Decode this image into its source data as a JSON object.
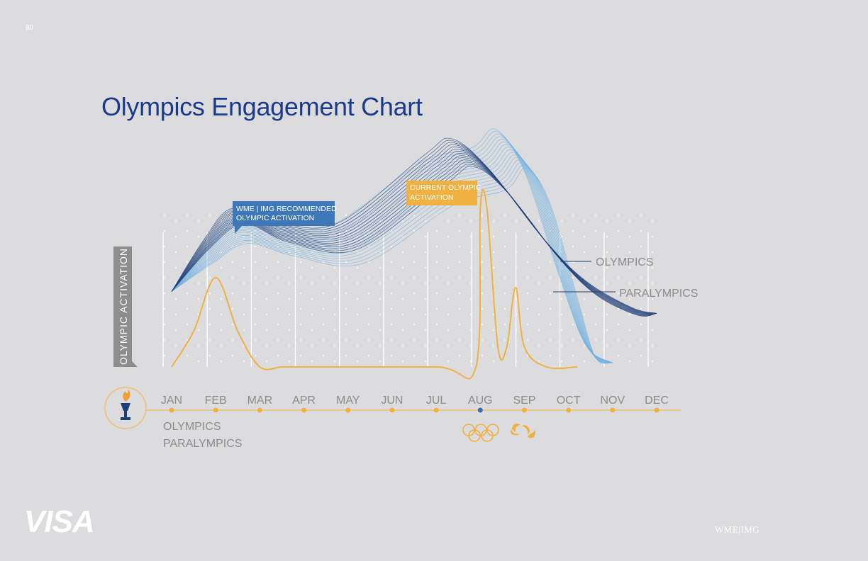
{
  "page": {
    "number": "80"
  },
  "brand": {
    "left_logo": "VISA",
    "right_logo": "WME|IMG"
  },
  "colors": {
    "olympics": "#1f3f78",
    "paralympics": "#6fb0e2",
    "activation": "#f0b042",
    "callout_blue": "#3f78b8",
    "title": "#1a3a8a"
  },
  "icons": {
    "torch": "torch-icon",
    "olympic_rings": "olympic-rings-icon",
    "paralympic_agitos": "paralympic-agitos-icon"
  },
  "chart_data": {
    "type": "line",
    "title": "Olympics Engagement Chart",
    "ylabel": "OLYMPIC ACTIVATION",
    "xlabel": "",
    "categories": [
      "JAN",
      "FEB",
      "MAR",
      "APR",
      "MAY",
      "JUN",
      "JUL",
      "AUG",
      "SEP",
      "OCT",
      "NOV",
      "DEC"
    ],
    "ylim": [
      0,
      100
    ],
    "grid": true,
    "highlighted_month": "AUG",
    "series": [
      {
        "name": "OLYMPICS",
        "x": [
          0,
          0.8,
          1.5,
          2.5,
          4,
          6,
          6.6,
          7.4,
          8.6,
          9.5,
          10.5,
          11
        ],
        "y": [
          38,
          62,
          76,
          68,
          66,
          100,
          108,
          94,
          60,
          40,
          28,
          27
        ]
      },
      {
        "name": "PARALYMPICS",
        "x": [
          0,
          0.8,
          1.5,
          2.5,
          4,
          6,
          7.2,
          7.7,
          8.3,
          9,
          9.5,
          10
        ],
        "y": [
          38,
          55,
          68,
          64,
          62,
          92,
          100,
          110,
          90,
          40,
          8,
          2
        ]
      },
      {
        "name": "CURRENT OLYMPIC ACTIVATION",
        "x": [
          0,
          0.5,
          1,
          1.5,
          2,
          2.5,
          3,
          6,
          6.9,
          7.0,
          7.15,
          7.4,
          7.6,
          7.8,
          8.0,
          8.5,
          9.2
        ],
        "y": [
          0,
          18,
          45,
          18,
          0,
          0,
          0,
          0,
          0,
          80,
          80,
          10,
          10,
          40,
          10,
          0,
          0
        ]
      },
      {
        "name": "WME | IMG RECOMMENDED OLYMPIC ACTIVATION",
        "x": [],
        "y": []
      }
    ],
    "annotations": {
      "recommended": "WME | IMG RECOMMENDED\nOLYMPIC ACTIVATION",
      "current": "CURRENT OLYMPIC\nACTIVATION"
    },
    "timeline_legend": [
      "OLYMPICS",
      "PARALYMPICS"
    ]
  }
}
